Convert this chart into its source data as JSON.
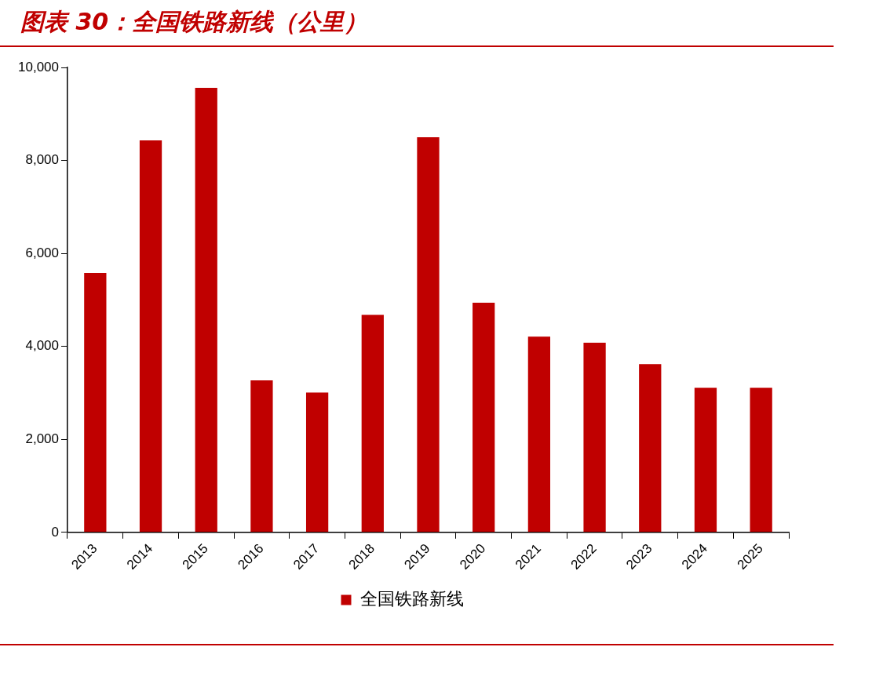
{
  "chart_data": {
    "type": "bar",
    "title": "图表 30：全国铁路新线（公里）",
    "categories": [
      "2013",
      "2014",
      "2015",
      "2016",
      "2017",
      "2018",
      "2019",
      "2020",
      "2021",
      "2022",
      "2023",
      "2024",
      "2025"
    ],
    "series": [
      {
        "name": "全国铁路新线",
        "color": "#c00000",
        "values": [
          5580,
          8430,
          9560,
          3270,
          3010,
          4680,
          8500,
          4940,
          4210,
          4080,
          3620,
          3110,
          3110
        ]
      }
    ],
    "ylim": [
      0,
      10000
    ],
    "yticks": [
      {
        "value": 0,
        "label": "0"
      },
      {
        "value": 2000,
        "label": "2,000"
      },
      {
        "value": 4000,
        "label": "4,000"
      },
      {
        "value": 6000,
        "label": "6,000"
      },
      {
        "value": 8000,
        "label": "8,000"
      },
      {
        "value": 10000,
        "label": "10,000"
      }
    ],
    "grid": false,
    "legend": "bottom"
  }
}
